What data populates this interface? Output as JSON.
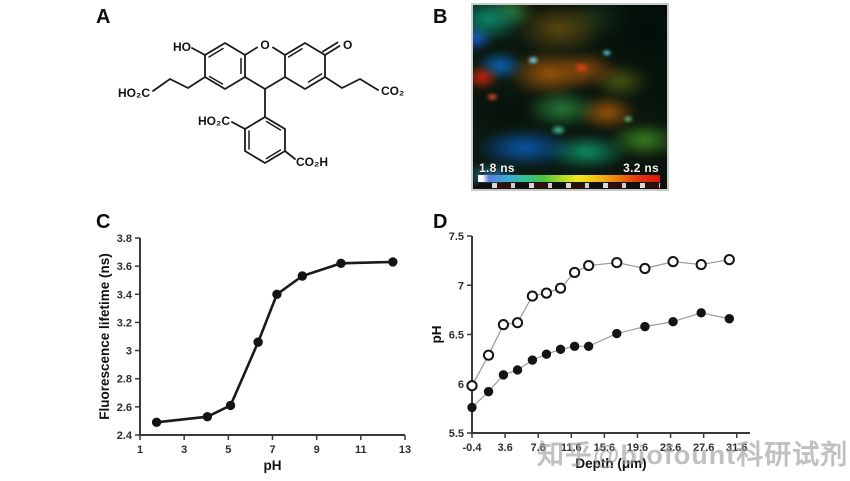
{
  "figure": {
    "background": "#ffffff",
    "panels": [
      {
        "label": "A"
      },
      {
        "label": "B"
      },
      {
        "label": "C"
      },
      {
        "label": "D"
      }
    ]
  },
  "structure": {
    "hydroxyl": "HO",
    "xanthene_oxygen": "O",
    "ketone_oxygen": "O",
    "left_chain_acid": "HO₂C",
    "right_chain_acid": "CO₂H",
    "phenyl_acid_upper": "HO₂C",
    "phenyl_acid_lower": "CO₂H"
  },
  "flim_image": {
    "scale_min_label": "1.8 ns",
    "scale_max_label": "3.2 ns",
    "colorbar_colors": [
      "#ffffff 0%",
      "#ffffff 2.5%",
      "#5a7bd8 6%",
      "#3fa8d9 15%",
      "#2fbf9a 26%",
      "#4ec43f 36%",
      "#acd827 46%",
      "#f2e71c 55%",
      "#f6bb13 66%",
      "#f07b12 77%",
      "#e63b0d 87%",
      "#d8180f 100%"
    ]
  },
  "watermark": "知乎@biofount科研试剂",
  "chart_data": [
    {
      "id": "c",
      "type": "line",
      "title": "",
      "xlabel": "pH",
      "ylabel": "Fluorescence lifetime (ns)",
      "xlim": [
        1,
        13
      ],
      "ylim": [
        2.4,
        3.8
      ],
      "x_ticks": [
        1,
        3,
        5,
        7,
        9,
        11,
        13
      ],
      "y_ticks": [
        2.4,
        2.6,
        2.8,
        3,
        3.2,
        3.4,
        3.6,
        3.8
      ],
      "grid": false,
      "legend": "none",
      "series": [
        {
          "name": "fluorescence_lifetime_vs_pH",
          "marker": "filled",
          "line_color": "#1a1a1a",
          "line_width": 2.6,
          "points": [
            [
              1.75,
              2.49
            ],
            [
              4.05,
              2.53
            ],
            [
              5.1,
              2.61
            ],
            [
              6.35,
              3.06
            ],
            [
              7.2,
              3.4
            ],
            [
              8.35,
              3.53
            ],
            [
              10.1,
              3.62
            ],
            [
              12.45,
              3.63
            ]
          ]
        }
      ]
    },
    {
      "id": "d",
      "type": "scatter",
      "title": "",
      "xlabel": "Depth (μm)",
      "ylabel": "pH",
      "xlim": [
        -0.4,
        33.2
      ],
      "ylim": [
        5.5,
        7.5
      ],
      "x_ticks": [
        -0.4,
        3.6,
        7.6,
        11.6,
        15.6,
        19.6,
        23.6,
        27.6,
        31.6
      ],
      "y_ticks": [
        5.5,
        6,
        6.5,
        7,
        7.5
      ],
      "grid": false,
      "legend": "none",
      "series": [
        {
          "name": "open_circles",
          "marker": "open",
          "line_color": "#9a9a9a",
          "line_width": 1.2,
          "points": [
            [
              -0.4,
              5.98
            ],
            [
              1.6,
              6.29
            ],
            [
              3.4,
              6.6
            ],
            [
              5.1,
              6.62
            ],
            [
              6.9,
              6.89
            ],
            [
              8.6,
              6.92
            ],
            [
              10.3,
              6.97
            ],
            [
              12.0,
              7.13
            ],
            [
              13.7,
              7.2
            ],
            [
              17.1,
              7.23
            ],
            [
              20.5,
              7.17
            ],
            [
              23.9,
              7.24
            ],
            [
              27.3,
              7.21
            ],
            [
              30.7,
              7.26
            ]
          ]
        },
        {
          "name": "filled_circles",
          "marker": "filled",
          "line_color": "#9a9a9a",
          "line_width": 1.2,
          "points": [
            [
              -0.4,
              5.76
            ],
            [
              1.6,
              5.92
            ],
            [
              3.4,
              6.09
            ],
            [
              5.1,
              6.14
            ],
            [
              6.9,
              6.24
            ],
            [
              8.6,
              6.3
            ],
            [
              10.3,
              6.35
            ],
            [
              12.0,
              6.38
            ],
            [
              13.7,
              6.38
            ],
            [
              17.1,
              6.51
            ],
            [
              20.5,
              6.58
            ],
            [
              23.9,
              6.63
            ],
            [
              27.3,
              6.72
            ],
            [
              30.7,
              6.66
            ]
          ]
        }
      ]
    }
  ]
}
